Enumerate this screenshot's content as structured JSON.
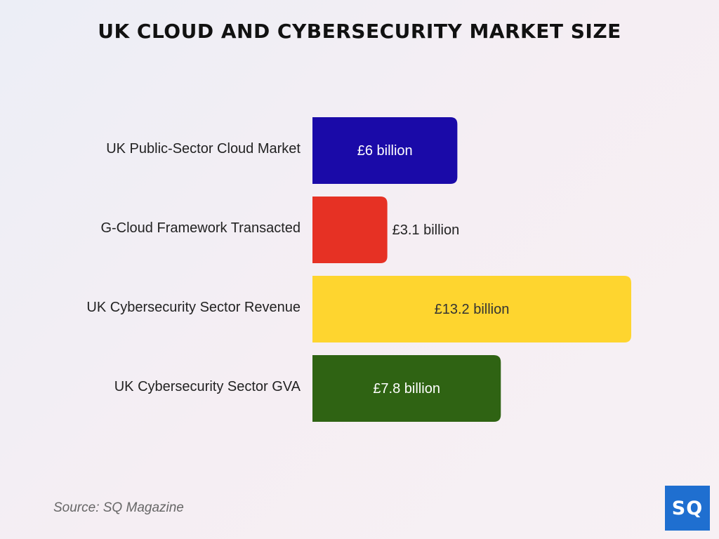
{
  "chart_data": {
    "type": "bar",
    "orientation": "horizontal",
    "title": "UK CLOUD AND CYBERSECURITY MARKET SIZE",
    "xlabel": "",
    "ylabel": "",
    "unit": "£ billion",
    "xlim": [
      0,
      13.2
    ],
    "grid": false,
    "categories": [
      "UK Public-Sector Cloud Market",
      "G-Cloud Framework Transacted",
      "UK Cybersecurity Sector Revenue",
      "UK Cybersecurity Sector GVA"
    ],
    "values": [
      6,
      3.1,
      13.2,
      7.8
    ],
    "data_labels": [
      "£6 billion",
      "£3.1 billion",
      "£13.2 billion",
      "£7.8 billion"
    ],
    "colors": [
      "#1a0aa8",
      "#e63124",
      "#fed52f",
      "#2f6313"
    ],
    "label_colors": [
      "#ffffff",
      "#222222",
      "#333333",
      "#ffffff"
    ]
  },
  "source": "Source: SQ Magazine",
  "logo": {
    "text": "SQ",
    "color": "#1f6fd0"
  }
}
